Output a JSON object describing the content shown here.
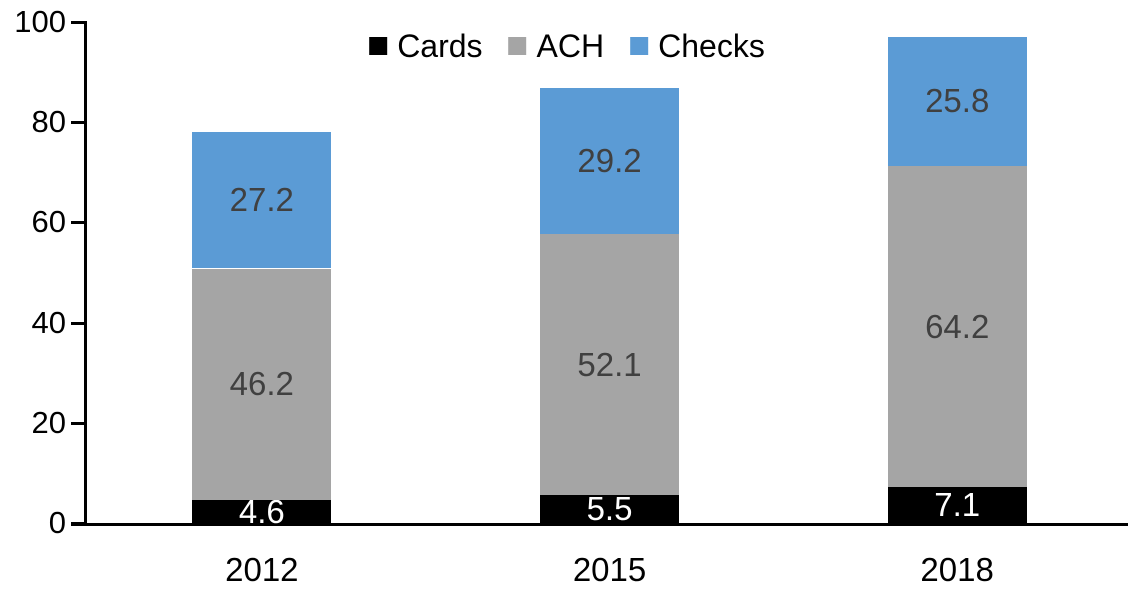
{
  "chart_data": {
    "type": "bar",
    "stacked": true,
    "title": "",
    "categories": [
      "2012",
      "2015",
      "2018"
    ],
    "series": [
      {
        "name": "Cards",
        "color": "#000000",
        "label_color": "#ffffff",
        "values": [
          4.6,
          5.5,
          7.1
        ]
      },
      {
        "name": "ACH",
        "color": "#a5a5a5",
        "label_color": "#404040",
        "values": [
          46.2,
          52.1,
          64.2
        ]
      },
      {
        "name": "Checks",
        "color": "#5b9bd5",
        "label_color": "#404040",
        "values": [
          27.2,
          29.2,
          25.8
        ]
      }
    ],
    "totals": [
      78.0,
      86.8,
      97.1
    ],
    "ylim": [
      0,
      100
    ],
    "yticks": [
      0,
      20,
      40,
      60,
      80,
      100
    ],
    "xlabel": "",
    "ylabel": "",
    "legend_position": "top",
    "grid": false,
    "axis_color": "#000000",
    "background": "#ffffff"
  }
}
